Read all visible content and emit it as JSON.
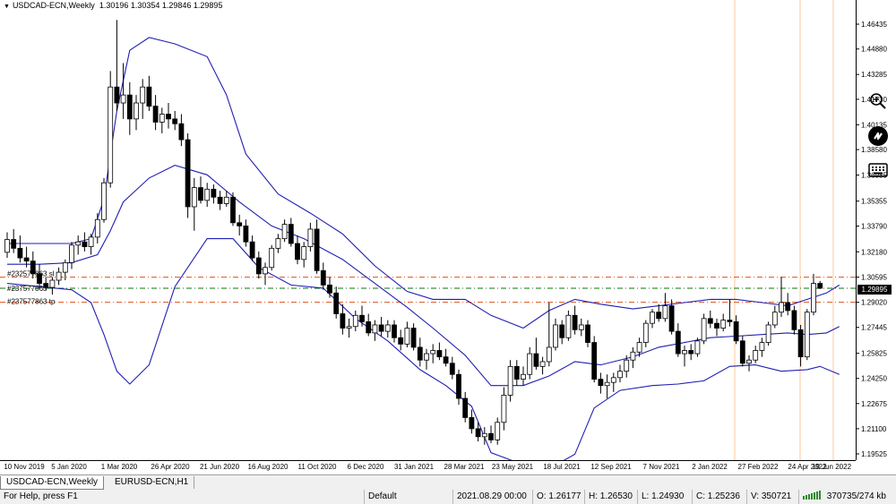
{
  "header": {
    "symbol": "USDCAD-ECN,Weekly",
    "prices": "1.30196 1.30354 1.29846 1.29895"
  },
  "price_axis": {
    "labels": [
      "1.46435",
      "1.44880",
      "1.43285",
      "1.41730",
      "1.40135",
      "1.38580",
      "1.36985",
      "1.35355",
      "1.33790",
      "1.32180",
      "1.30595",
      "1.29020",
      "1.27445",
      "1.25825",
      "1.24250",
      "1.22675",
      "1.21100",
      "1.19525"
    ],
    "current_price": "1.29895"
  },
  "time_axis": {
    "labels": [
      "10 Nov 2019",
      "5 Jan 2020",
      "1 Mar 2020",
      "26 Apr 2020",
      "21 Jun 2020",
      "16 Aug 2020",
      "11 Oct 2020",
      "6 Dec 2020",
      "31 Jan 2021",
      "28 Mar 2021",
      "23 May 2021",
      "18 Jul 2021",
      "12 Sep 2021",
      "7 Nov 2021",
      "2 Jan 2022",
      "27 Feb 2022",
      "24 Apr 2022",
      "19 Jun 2022"
    ]
  },
  "order_lines": [
    {
      "label": "#232577863 sl",
      "price": 1.3059
    },
    {
      "label": "#237577863",
      "price": 1.299
    },
    {
      "label": "#237577863 tp",
      "price": 1.2902
    }
  ],
  "colors": {
    "bands": "#1f1fb4",
    "order_line": "#e0501c",
    "entry_line": "#107010",
    "separator": "#ffc89a",
    "background": "#ffffff"
  },
  "tools": [
    "zoom-in-icon",
    "autoscroll-icon",
    "keyboard-icon"
  ],
  "tabs": [
    {
      "label": "USDCAD-ECN,Weekly",
      "active": true
    },
    {
      "label": "EURUSD-ECN,H1",
      "active": false
    }
  ],
  "status": {
    "help": "For Help, press F1",
    "profile": "Default",
    "datetime": "2021.08.29 00:00",
    "open": "O: 1.26177",
    "high": "H: 1.26530",
    "low": "L: 1.24930",
    "close": "C: 1.25236",
    "volume": "V: 350721",
    "traffic": "370735/274 kb"
  },
  "chart_data": {
    "type": "candlestick",
    "symbol": "USDCAD-ECN",
    "timeframe": "Weekly",
    "candles": [
      [
        1.3215,
        1.334,
        1.318,
        1.3295
      ],
      [
        1.3295,
        1.336,
        1.321,
        1.324
      ],
      [
        1.324,
        1.332,
        1.315,
        1.318
      ],
      [
        1.318,
        1.325,
        1.312,
        1.316
      ],
      [
        1.316,
        1.322,
        1.305,
        1.308
      ],
      [
        1.308,
        1.314,
        1.299,
        1.302
      ],
      [
        1.302,
        1.306,
        1.298,
        1.2995
      ],
      [
        1.2995,
        1.306,
        1.295,
        1.304
      ],
      [
        1.304,
        1.312,
        1.301,
        1.309
      ],
      [
        1.309,
        1.317,
        1.304,
        1.315
      ],
      [
        1.315,
        1.328,
        1.311,
        1.326
      ],
      [
        1.326,
        1.332,
        1.32,
        1.328
      ],
      [
        1.328,
        1.334,
        1.322,
        1.325
      ],
      [
        1.325,
        1.333,
        1.32,
        1.331
      ],
      [
        1.331,
        1.346,
        1.327,
        1.342
      ],
      [
        1.342,
        1.368,
        1.34,
        1.365
      ],
      [
        1.365,
        1.435,
        1.362,
        1.425
      ],
      [
        1.425,
        1.467,
        1.41,
        1.415
      ],
      [
        1.415,
        1.44,
        1.405,
        1.42
      ],
      [
        1.42,
        1.428,
        1.395,
        1.405
      ],
      [
        1.405,
        1.42,
        1.398,
        1.415
      ],
      [
        1.415,
        1.43,
        1.405,
        1.425
      ],
      [
        1.425,
        1.432,
        1.41,
        1.413
      ],
      [
        1.413,
        1.42,
        1.398,
        1.403
      ],
      [
        1.403,
        1.412,
        1.396,
        1.408
      ],
      [
        1.408,
        1.415,
        1.399,
        1.405
      ],
      [
        1.405,
        1.41,
        1.398,
        1.402
      ],
      [
        1.402,
        1.408,
        1.388,
        1.392
      ],
      [
        1.392,
        1.396,
        1.343,
        1.35
      ],
      [
        1.35,
        1.368,
        1.335,
        1.362
      ],
      [
        1.362,
        1.369,
        1.352,
        1.354
      ],
      [
        1.354,
        1.365,
        1.35,
        1.361
      ],
      [
        1.361,
        1.364,
        1.352,
        1.356
      ],
      [
        1.356,
        1.36,
        1.348,
        1.352
      ],
      [
        1.352,
        1.36,
        1.35,
        1.356
      ],
      [
        1.356,
        1.359,
        1.338,
        1.34
      ],
      [
        1.34,
        1.345,
        1.332,
        1.338
      ],
      [
        1.338,
        1.342,
        1.325,
        1.328
      ],
      [
        1.328,
        1.332,
        1.316,
        1.318
      ],
      [
        1.318,
        1.322,
        1.305,
        1.308
      ],
      [
        1.308,
        1.315,
        1.301,
        1.312
      ],
      [
        1.312,
        1.326,
        1.31,
        1.324
      ],
      [
        1.324,
        1.333,
        1.321,
        1.33
      ],
      [
        1.33,
        1.342,
        1.328,
        1.339
      ],
      [
        1.339,
        1.343,
        1.325,
        1.327
      ],
      [
        1.327,
        1.332,
        1.314,
        1.317
      ],
      [
        1.317,
        1.328,
        1.312,
        1.325
      ],
      [
        1.325,
        1.34,
        1.322,
        1.336
      ],
      [
        1.336,
        1.342,
        1.308,
        1.31
      ],
      [
        1.31,
        1.315,
        1.298,
        1.301
      ],
      [
        1.301,
        1.306,
        1.293,
        1.296
      ],
      [
        1.296,
        1.3,
        1.28,
        1.283
      ],
      [
        1.283,
        1.289,
        1.27,
        1.274
      ],
      [
        1.274,
        1.28,
        1.268,
        1.275
      ],
      [
        1.275,
        1.285,
        1.272,
        1.282
      ],
      [
        1.282,
        1.288,
        1.275,
        1.278
      ],
      [
        1.278,
        1.283,
        1.269,
        1.271
      ],
      [
        1.271,
        1.279,
        1.266,
        1.276
      ],
      [
        1.276,
        1.281,
        1.269,
        1.272
      ],
      [
        1.272,
        1.279,
        1.268,
        1.276
      ],
      [
        1.276,
        1.279,
        1.265,
        1.268
      ],
      [
        1.268,
        1.273,
        1.26,
        1.264
      ],
      [
        1.264,
        1.278,
        1.262,
        1.274
      ],
      [
        1.274,
        1.277,
        1.26,
        1.262
      ],
      [
        1.262,
        1.268,
        1.25,
        1.254
      ],
      [
        1.254,
        1.261,
        1.248,
        1.258
      ],
      [
        1.258,
        1.264,
        1.252,
        1.26
      ],
      [
        1.26,
        1.265,
        1.254,
        1.256
      ],
      [
        1.256,
        1.261,
        1.25,
        1.252
      ],
      [
        1.252,
        1.256,
        1.242,
        1.245
      ],
      [
        1.245,
        1.248,
        1.226,
        1.23
      ],
      [
        1.23,
        1.234,
        1.215,
        1.218
      ],
      [
        1.218,
        1.223,
        1.208,
        1.211
      ],
      [
        1.211,
        1.215,
        1.203,
        1.206
      ],
      [
        1.206,
        1.212,
        1.201,
        1.208
      ],
      [
        1.208,
        1.213,
        1.202,
        1.204
      ],
      [
        1.204,
        1.218,
        1.201,
        1.215
      ],
      [
        1.215,
        1.237,
        1.21,
        1.232
      ],
      [
        1.232,
        1.254,
        1.228,
        1.25
      ],
      [
        1.25,
        1.254,
        1.238,
        1.242
      ],
      [
        1.242,
        1.25,
        1.238,
        1.245
      ],
      [
        1.245,
        1.262,
        1.242,
        1.258
      ],
      [
        1.258,
        1.268,
        1.248,
        1.25
      ],
      [
        1.25,
        1.256,
        1.245,
        1.253
      ],
      [
        1.253,
        1.29,
        1.25,
        1.262
      ],
      [
        1.262,
        1.28,
        1.26,
        1.276
      ],
      [
        1.276,
        1.279,
        1.264,
        1.268
      ],
      [
        1.268,
        1.285,
        1.266,
        1.282
      ],
      [
        1.282,
        1.288,
        1.27,
        1.273
      ],
      [
        1.273,
        1.28,
        1.269,
        1.276
      ],
      [
        1.276,
        1.279,
        1.262,
        1.265
      ],
      [
        1.265,
        1.269,
        1.24,
        1.242
      ],
      [
        1.242,
        1.246,
        1.233,
        1.238
      ],
      [
        1.238,
        1.245,
        1.23,
        1.24
      ],
      [
        1.24,
        1.246,
        1.234,
        1.243
      ],
      [
        1.243,
        1.251,
        1.24,
        1.247
      ],
      [
        1.247,
        1.257,
        1.243,
        1.254
      ],
      [
        1.254,
        1.262,
        1.249,
        1.259
      ],
      [
        1.259,
        1.268,
        1.256,
        1.265
      ],
      [
        1.265,
        1.279,
        1.262,
        1.277
      ],
      [
        1.277,
        1.286,
        1.274,
        1.284
      ],
      [
        1.284,
        1.289,
        1.278,
        1.28
      ],
      [
        1.28,
        1.296,
        1.278,
        1.288
      ],
      [
        1.288,
        1.292,
        1.27,
        1.272
      ],
      [
        1.272,
        1.277,
        1.256,
        1.258
      ],
      [
        1.258,
        1.263,
        1.25,
        1.26
      ],
      [
        1.26,
        1.264,
        1.254,
        1.258
      ],
      [
        1.258,
        1.268,
        1.256,
        1.266
      ],
      [
        1.266,
        1.283,
        1.264,
        1.28
      ],
      [
        1.28,
        1.285,
        1.274,
        1.277
      ],
      [
        1.277,
        1.28,
        1.269,
        1.274
      ],
      [
        1.274,
        1.283,
        1.272,
        1.279
      ],
      [
        1.279,
        1.292,
        1.275,
        1.278
      ],
      [
        1.278,
        1.282,
        1.264,
        1.266
      ],
      [
        1.266,
        1.269,
        1.25,
        1.252
      ],
      [
        1.252,
        1.257,
        1.247,
        1.254
      ],
      [
        1.254,
        1.263,
        1.252,
        1.26
      ],
      [
        1.26,
        1.268,
        1.256,
        1.265
      ],
      [
        1.265,
        1.278,
        1.263,
        1.276
      ],
      [
        1.276,
        1.288,
        1.274,
        1.284
      ],
      [
        1.284,
        1.306,
        1.281,
        1.29
      ],
      [
        1.29,
        1.296,
        1.282,
        1.285
      ],
      [
        1.285,
        1.288,
        1.27,
        1.273
      ],
      [
        1.273,
        1.276,
        1.25,
        1.256
      ],
      [
        1.256,
        1.286,
        1.254,
        1.284
      ],
      [
        1.284,
        1.308,
        1.282,
        1.302
      ],
      [
        1.302,
        1.3035,
        1.2985,
        1.299
      ]
    ],
    "bb_upper": [
      [
        0,
        1.327
      ],
      [
        5,
        1.327
      ],
      [
        10,
        1.327
      ],
      [
        13,
        1.33
      ],
      [
        15,
        1.355
      ],
      [
        17,
        1.41
      ],
      [
        19,
        1.448
      ],
      [
        22,
        1.456
      ],
      [
        26,
        1.452
      ],
      [
        31,
        1.444
      ],
      [
        34,
        1.42
      ],
      [
        37,
        1.383
      ],
      [
        42,
        1.358
      ],
      [
        47,
        1.346
      ],
      [
        52,
        1.333
      ],
      [
        57,
        1.313
      ],
      [
        62,
        1.297
      ],
      [
        66,
        1.292
      ],
      [
        71,
        1.292
      ],
      [
        75,
        1.282
      ],
      [
        80,
        1.274
      ],
      [
        84,
        1.285
      ],
      [
        88,
        1.292
      ],
      [
        92,
        1.289
      ],
      [
        97,
        1.286
      ],
      [
        101,
        1.288
      ],
      [
        105,
        1.29
      ],
      [
        109,
        1.292
      ],
      [
        113,
        1.292
      ],
      [
        117,
        1.29
      ],
      [
        121,
        1.288
      ],
      [
        124,
        1.292
      ],
      [
        127,
        1.296
      ],
      [
        129,
        1.301
      ]
    ],
    "bb_middle": [
      [
        0,
        1.314
      ],
      [
        5,
        1.314
      ],
      [
        10,
        1.315
      ],
      [
        14,
        1.32
      ],
      [
        16,
        1.335
      ],
      [
        18,
        1.353
      ],
      [
        22,
        1.368
      ],
      [
        26,
        1.376
      ],
      [
        31,
        1.37
      ],
      [
        36,
        1.353
      ],
      [
        41,
        1.338
      ],
      [
        46,
        1.33
      ],
      [
        52,
        1.317
      ],
      [
        57,
        1.302
      ],
      [
        62,
        1.287
      ],
      [
        66,
        1.274
      ],
      [
        71,
        1.257
      ],
      [
        75,
        1.238
      ],
      [
        80,
        1.238
      ],
      [
        84,
        1.244
      ],
      [
        88,
        1.253
      ],
      [
        92,
        1.251
      ],
      [
        97,
        1.256
      ],
      [
        101,
        1.262
      ],
      [
        105,
        1.265
      ],
      [
        109,
        1.268
      ],
      [
        113,
        1.269
      ],
      [
        117,
        1.27
      ],
      [
        121,
        1.271
      ],
      [
        124,
        1.27
      ],
      [
        127,
        1.271
      ],
      [
        129,
        1.275
      ]
    ],
    "bb_lower": [
      [
        0,
        1.302
      ],
      [
        5,
        1.3
      ],
      [
        10,
        1.298
      ],
      [
        13,
        1.29
      ],
      [
        15,
        1.27
      ],
      [
        17,
        1.247
      ],
      [
        19,
        1.239
      ],
      [
        22,
        1.251
      ],
      [
        26,
        1.3
      ],
      [
        31,
        1.33
      ],
      [
        35,
        1.33
      ],
      [
        39,
        1.312
      ],
      [
        44,
        1.301
      ],
      [
        49,
        1.299
      ],
      [
        54,
        1.28
      ],
      [
        59,
        1.266
      ],
      [
        64,
        1.248
      ],
      [
        68,
        1.238
      ],
      [
        72,
        1.225
      ],
      [
        75,
        1.196
      ],
      [
        79,
        1.19
      ],
      [
        84,
        1.186
      ],
      [
        88,
        1.195
      ],
      [
        91,
        1.224
      ],
      [
        95,
        1.235
      ],
      [
        100,
        1.238
      ],
      [
        104,
        1.239
      ],
      [
        108,
        1.241
      ],
      [
        112,
        1.25
      ],
      [
        116,
        1.251
      ],
      [
        120,
        1.247
      ],
      [
        124,
        1.248
      ],
      [
        126,
        1.25
      ],
      [
        129,
        1.245
      ]
    ]
  }
}
